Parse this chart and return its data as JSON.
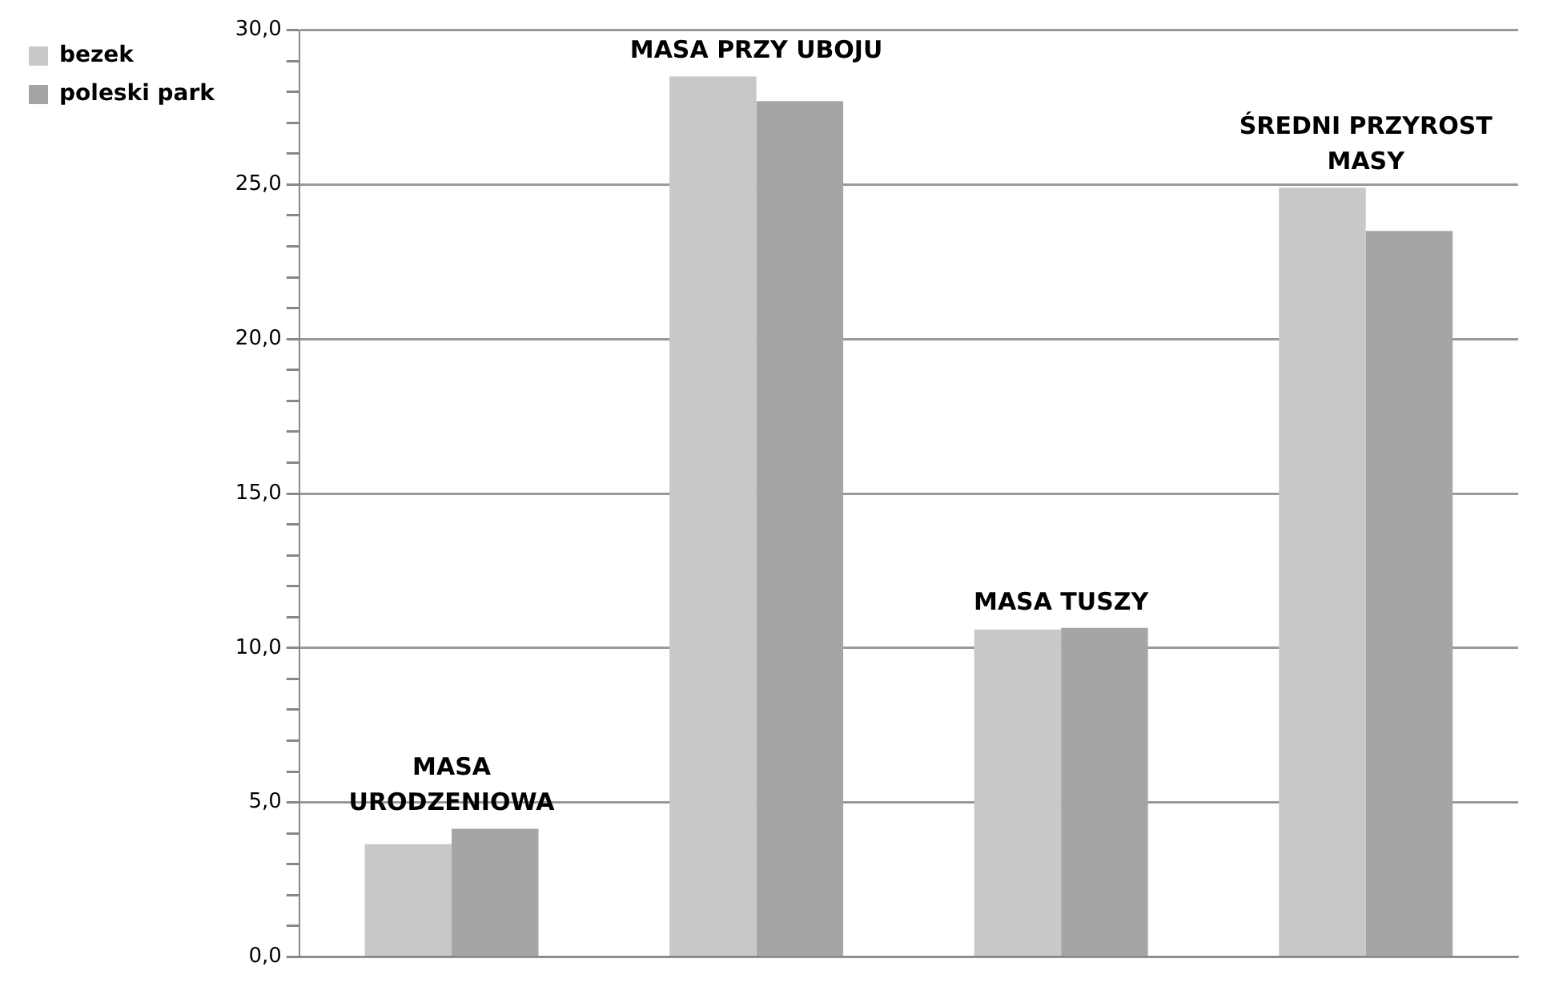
{
  "chart_data": {
    "type": "bar",
    "categories": [
      "MASA URODZENIOWA",
      "MASA PRZY UBOJU",
      "MASA TUSZY",
      "ŚREDNI PRZYROST MASY"
    ],
    "series": [
      {
        "name": "bezek",
        "color": "#c8c8c8",
        "values": [
          3.65,
          28.5,
          10.6,
          24.9
        ]
      },
      {
        "name": "poleski park",
        "color": "#a5a5a5",
        "values": [
          4.15,
          27.7,
          10.65,
          23.5
        ]
      }
    ],
    "ylim": [
      0,
      30
    ],
    "yticks": [
      {
        "value": 0,
        "label": "0,0"
      },
      {
        "value": 1,
        "label": null
      },
      {
        "value": 2,
        "label": null
      },
      {
        "value": 3,
        "label": null
      },
      {
        "value": 4,
        "label": null
      },
      {
        "value": 5,
        "label": "5,0"
      },
      {
        "value": 6,
        "label": null
      },
      {
        "value": 7,
        "label": null
      },
      {
        "value": 8,
        "label": null
      },
      {
        "value": 9,
        "label": null
      },
      {
        "value": 10,
        "label": "10,0"
      },
      {
        "value": 11,
        "label": null
      },
      {
        "value": 12,
        "label": null
      },
      {
        "value": 13,
        "label": null
      },
      {
        "value": 14,
        "label": null
      },
      {
        "value": 15,
        "label": "15,0"
      },
      {
        "value": 16,
        "label": null
      },
      {
        "value": 17,
        "label": null
      },
      {
        "value": 18,
        "label": null
      },
      {
        "value": 19,
        "label": null
      },
      {
        "value": 20,
        "label": "20,0"
      },
      {
        "value": 21,
        "label": null
      },
      {
        "value": 22,
        "label": null
      },
      {
        "value": 23,
        "label": null
      },
      {
        "value": 24,
        "label": null
      },
      {
        "value": 25,
        "label": "25,0"
      },
      {
        "value": 26,
        "label": null
      },
      {
        "value": 27,
        "label": null
      },
      {
        "value": 28,
        "label": null
      },
      {
        "value": 29,
        "label": null
      },
      {
        "value": 30,
        "label": "30,0"
      }
    ],
    "grid": "y",
    "legend": "left",
    "tick_labels": "y"
  }
}
